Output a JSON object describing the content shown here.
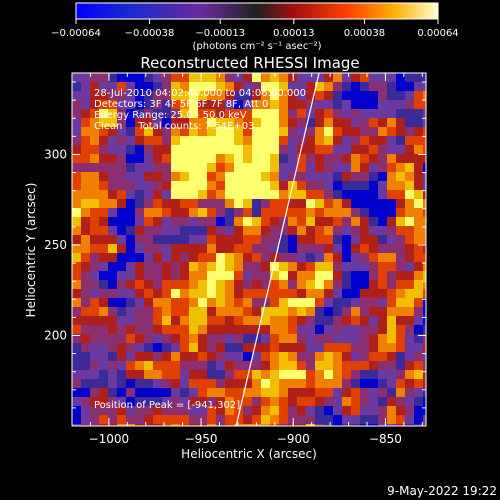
{
  "chart_data": {
    "type": "heatmap",
    "title": "Reconstructed RHESSI Image",
    "xlabel": "Heliocentric X (arcsec)",
    "ylabel": "Heliocentric Y (arcsec)",
    "xlim": [
      -1020,
      -828
    ],
    "ylim": [
      150,
      345
    ],
    "x_ticks": [
      -1000,
      -950,
      -900,
      -850
    ],
    "y_ticks": [
      200,
      250,
      300
    ],
    "x_tick_labels": [
      "−1000",
      "−950",
      "−900",
      "−850"
    ],
    "y_tick_labels": [
      "200",
      "250",
      "300"
    ],
    "colorbar": {
      "range": [
        -0.00064,
        0.00064
      ],
      "ticks": [
        -0.00064,
        -0.00038,
        -0.00013,
        0.00013,
        0.00038,
        0.00064
      ],
      "tick_labels": [
        "−0.00064",
        "−0.00038",
        "−0.00013",
        "0.00013",
        "0.00038",
        "0.00064"
      ],
      "unit": "(photons cm⁻² s⁻¹ asec⁻²)"
    },
    "colors": [
      "#0000cc",
      "#3a2a9a",
      "#6a3aa0",
      "#8a3070",
      "#b0201a",
      "#e04000",
      "#f08000",
      "#f0c000",
      "#ffff70"
    ],
    "annotations": [
      "28-Jul-2010 04:02:40.000 to 04:06:00.000",
      "Detectors: 3F 4F 5F 6F 7F 8F, Att 0",
      "Energy Range: 25.0 - 50.0 keV",
      "Clean     Total counts: 7.54E+03"
    ],
    "peak_label": "Position of Peak = [-941,302]",
    "peak_position": [
      -941,
      302
    ],
    "limb_line": [
      [
        -931,
        150
      ],
      [
        -886,
        345
      ]
    ]
  },
  "footer": {
    "timestamp": "9-May-2022 19:22"
  }
}
